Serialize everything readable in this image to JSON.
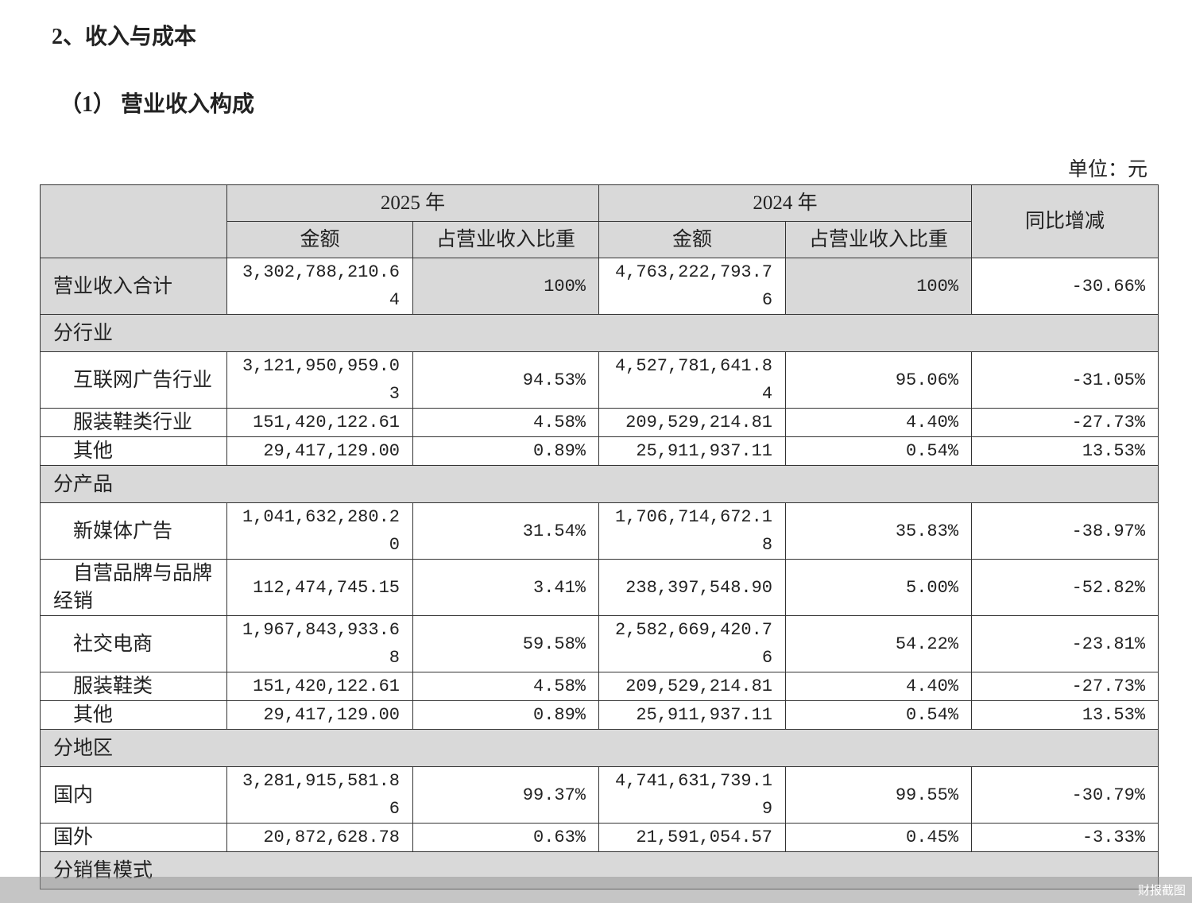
{
  "heading": "2、收入与成本",
  "subheading": "（1） 营业收入构成",
  "unit": "单位：元",
  "table": {
    "header": {
      "years": [
        "2025 年",
        "2024 年"
      ],
      "columns": [
        "金额",
        "占营业收入比重",
        "金额",
        "占营业收入比重"
      ],
      "yoy": "同比增减"
    },
    "rows": [
      [
        "营业收入合计",
        "3,302,788,210.64",
        "100%",
        "4,763,222,793.76",
        "100%",
        "-30.66%"
      ],
      [
        "分行业"
      ],
      [
        "　互联网广告行业",
        "3,121,950,959.03",
        "94.53%",
        "4,527,781,641.84",
        "95.06%",
        "-31.05%"
      ],
      [
        "　服装鞋类行业",
        "151,420,122.61",
        "4.58%",
        "209,529,214.81",
        "4.40%",
        "-27.73%"
      ],
      [
        "　其他",
        "29,417,129.00",
        "0.89%",
        "25,911,937.11",
        "0.54%",
        "13.53%"
      ],
      [
        "分产品"
      ],
      [
        "　新媒体广告",
        "1,041,632,280.20",
        "31.54%",
        "1,706,714,672.18",
        "35.83%",
        "-38.97%"
      ],
      [
        "　自营品牌与品牌经销",
        "112,474,745.15",
        "3.41%",
        "238,397,548.90",
        "5.00%",
        "-52.82%"
      ],
      [
        "　社交电商",
        "1,967,843,933.68",
        "59.58%",
        "2,582,669,420.76",
        "54.22%",
        "-23.81%"
      ],
      [
        "　服装鞋类",
        "151,420,122.61",
        "4.58%",
        "209,529,214.81",
        "4.40%",
        "-27.73%"
      ],
      [
        "　其他",
        "29,417,129.00",
        "0.89%",
        "25,911,937.11",
        "0.54%",
        "13.53%"
      ],
      [
        "分地区"
      ],
      [
        "国内",
        "3,281,915,581.86",
        "99.37%",
        "4,741,631,739.19",
        "99.55%",
        "-30.79%"
      ],
      [
        "国外",
        "20,872,628.78",
        "0.63%",
        "21,591,054.57",
        "0.45%",
        "-3.33%"
      ],
      [
        "分销售模式"
      ]
    ]
  },
  "watermark": "财报截图"
}
